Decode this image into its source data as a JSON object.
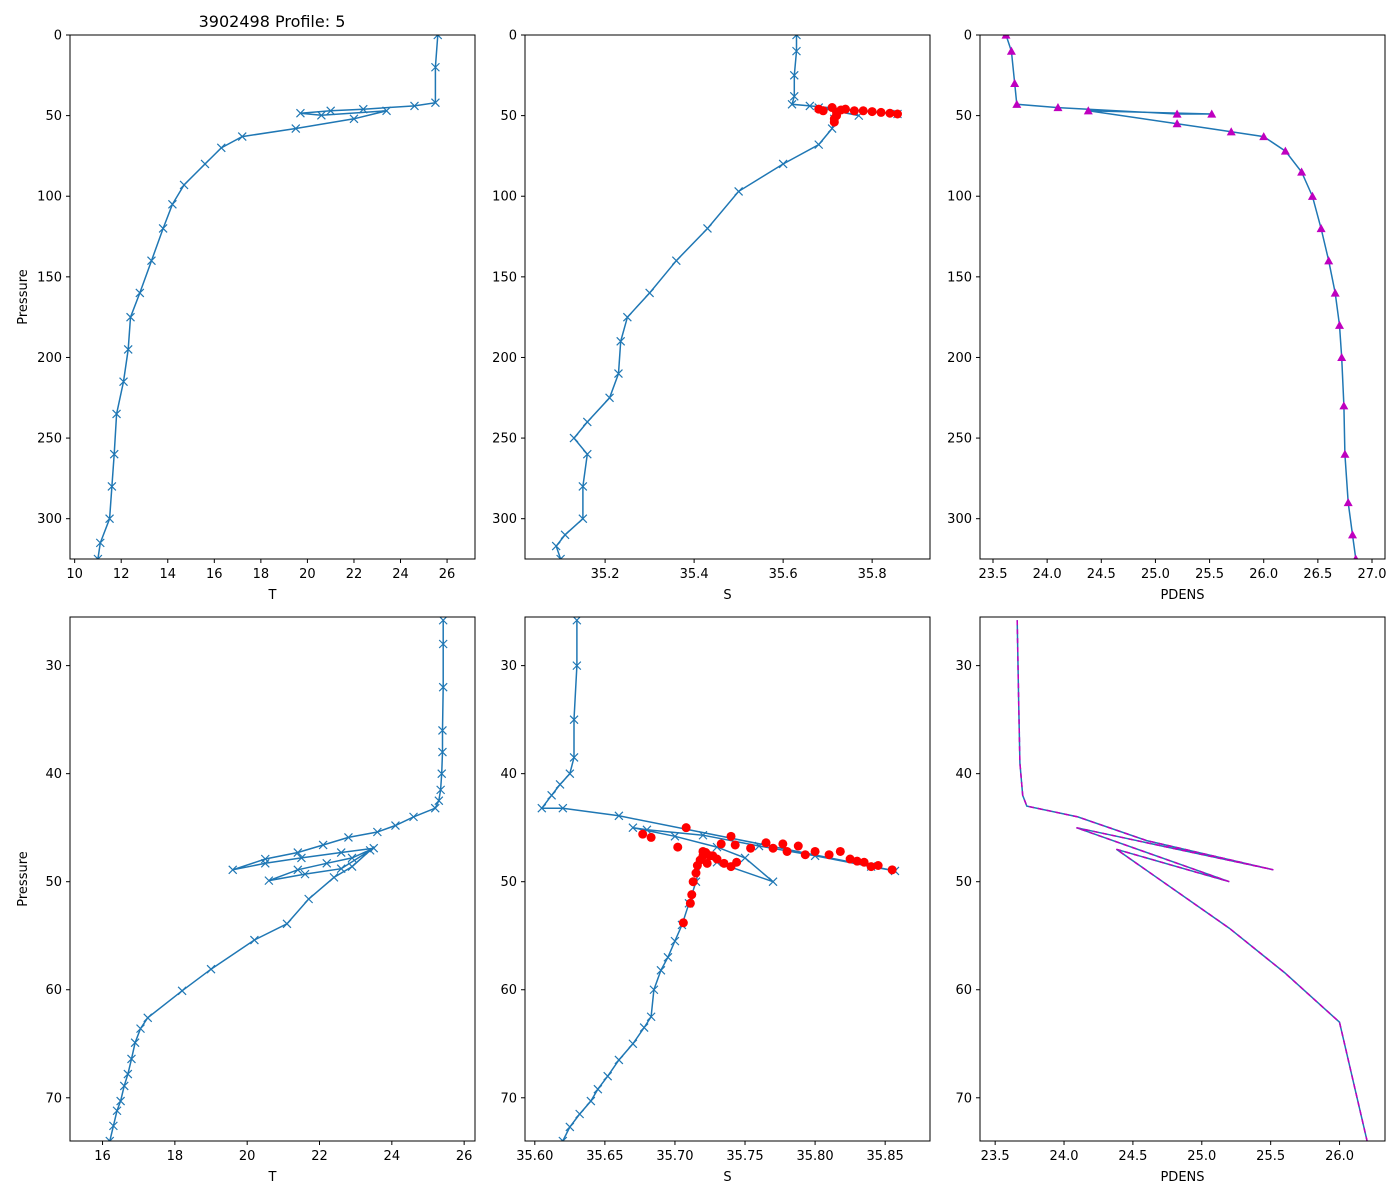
{
  "title": "3902498 Profile: 5",
  "colors": {
    "line": "#1f77b4",
    "flag": "#ff0000",
    "density": "#bf00bf"
  },
  "chart_data": [
    {
      "type": "line",
      "panel": "top-left",
      "xlabel": "T",
      "ylabel": "Pressure",
      "xlim": [
        9.8,
        27.2
      ],
      "ylim": [
        325,
        0
      ],
      "xticks": [
        10,
        12,
        14,
        16,
        18,
        20,
        22,
        24,
        26
      ],
      "yticks": [
        0,
        50,
        100,
        150,
        200,
        250,
        300
      ],
      "marker": "x",
      "series": [
        {
          "name": "T",
          "points": [
            [
              25.6,
              0
            ],
            [
              25.5,
              20
            ],
            [
              25.5,
              42
            ],
            [
              24.6,
              44
            ],
            [
              22.4,
              46
            ],
            [
              21.0,
              47
            ],
            [
              19.7,
              48.5
            ],
            [
              20.6,
              49.8
            ],
            [
              23.4,
              47
            ],
            [
              22.0,
              52
            ],
            [
              19.5,
              58
            ],
            [
              17.2,
              63
            ],
            [
              16.3,
              70
            ],
            [
              15.6,
              80
            ],
            [
              14.7,
              93
            ],
            [
              14.2,
              105
            ],
            [
              13.8,
              120
            ],
            [
              13.3,
              140
            ],
            [
              12.8,
              160
            ],
            [
              12.4,
              175
            ],
            [
              12.3,
              195
            ],
            [
              12.1,
              215
            ],
            [
              11.8,
              235
            ],
            [
              11.7,
              260
            ],
            [
              11.6,
              280
            ],
            [
              11.5,
              300
            ],
            [
              11.1,
              315
            ],
            [
              11.0,
              325
            ]
          ]
        }
      ]
    },
    {
      "type": "line",
      "panel": "top-middle",
      "xlabel": "S",
      "ylabel": "",
      "xlim": [
        35.02,
        35.93
      ],
      "ylim": [
        325,
        0
      ],
      "xticks": [
        35.2,
        35.4,
        35.6,
        35.8
      ],
      "yticks": [
        0,
        50,
        100,
        150,
        200,
        250,
        300
      ],
      "marker": "x",
      "series": [
        {
          "name": "S",
          "points": [
            [
              35.63,
              0
            ],
            [
              35.63,
              10
            ],
            [
              35.625,
              25
            ],
            [
              35.625,
              38
            ],
            [
              35.62,
              43
            ],
            [
              35.66,
              44
            ],
            [
              35.857,
              49
            ],
            [
              35.68,
              45
            ],
            [
              35.77,
              50
            ],
            [
              35.72,
              47
            ],
            [
              35.715,
              52
            ],
            [
              35.71,
              58
            ],
            [
              35.68,
              68
            ],
            [
              35.6,
              80
            ],
            [
              35.5,
              97
            ],
            [
              35.43,
              120
            ],
            [
              35.36,
              140
            ],
            [
              35.3,
              160
            ],
            [
              35.25,
              175
            ],
            [
              35.235,
              190
            ],
            [
              35.23,
              210
            ],
            [
              35.21,
              225
            ],
            [
              35.16,
              240
            ],
            [
              35.13,
              250
            ],
            [
              35.16,
              260
            ],
            [
              35.15,
              280
            ],
            [
              35.15,
              300
            ],
            [
              35.11,
              310
            ],
            [
              35.09,
              317
            ],
            [
              35.1,
              325
            ]
          ]
        },
        {
          "name": "flagged",
          "points": [
            [
              35.68,
              46
            ],
            [
              35.71,
              45
            ],
            [
              35.74,
              46
            ],
            [
              35.76,
              47
            ],
            [
              35.78,
              47
            ],
            [
              35.8,
              47.5
            ],
            [
              35.82,
              48
            ],
            [
              35.84,
              48.5
            ],
            [
              35.857,
              49
            ],
            [
              35.72,
              48
            ],
            [
              35.72,
              50
            ],
            [
              35.715,
              52
            ],
            [
              35.715,
              54
            ],
            [
              35.73,
              46.5
            ],
            [
              35.69,
              47
            ]
          ]
        }
      ]
    },
    {
      "type": "line",
      "panel": "top-right",
      "xlabel": "PDENS",
      "ylabel": "",
      "xlim": [
        23.38,
        27.12
      ],
      "ylim": [
        325,
        0
      ],
      "xticks": [
        23.5,
        24.0,
        24.5,
        25.0,
        25.5,
        26.0,
        26.5,
        27.0
      ],
      "yticks": [
        0,
        50,
        100,
        150,
        200,
        250,
        300
      ],
      "marker": "triangle",
      "series": [
        {
          "name": "PDENS",
          "points": [
            [
              23.62,
              0
            ],
            [
              23.67,
              10
            ],
            [
              23.7,
              30
            ],
            [
              23.72,
              43
            ],
            [
              24.1,
              45
            ],
            [
              25.2,
              49
            ],
            [
              25.52,
              49
            ],
            [
              24.38,
              47
            ],
            [
              25.2,
              55
            ],
            [
              25.7,
              60
            ],
            [
              26.0,
              63
            ],
            [
              26.2,
              72
            ],
            [
              26.35,
              85
            ],
            [
              26.45,
              100
            ],
            [
              26.53,
              120
            ],
            [
              26.6,
              140
            ],
            [
              26.66,
              160
            ],
            [
              26.7,
              180
            ],
            [
              26.72,
              200
            ],
            [
              26.74,
              230
            ],
            [
              26.75,
              260
            ],
            [
              26.78,
              290
            ],
            [
              26.82,
              310
            ],
            [
              26.85,
              325
            ]
          ]
        }
      ]
    },
    {
      "type": "line",
      "panel": "bottom-left",
      "xlabel": "T",
      "ylabel": "Pressure",
      "xlim": [
        15.1,
        26.3
      ],
      "ylim": [
        74,
        25.5
      ],
      "xticks": [
        16,
        18,
        20,
        22,
        24,
        26
      ],
      "yticks": [
        30,
        40,
        50,
        60,
        70
      ],
      "marker": "x",
      "series": [
        {
          "name": "T",
          "points": [
            [
              25.42,
              25.8
            ],
            [
              25.42,
              28
            ],
            [
              25.42,
              32
            ],
            [
              25.4,
              36
            ],
            [
              25.4,
              38
            ],
            [
              25.38,
              40
            ],
            [
              25.35,
              41.5
            ],
            [
              25.3,
              42.5
            ],
            [
              25.2,
              43.2
            ],
            [
              24.6,
              44
            ],
            [
              24.1,
              44.8
            ],
            [
              23.6,
              45.4
            ],
            [
              22.8,
              45.9
            ],
            [
              22.1,
              46.6
            ],
            [
              21.4,
              47.3
            ],
            [
              20.5,
              47.9
            ],
            [
              19.6,
              48.9
            ],
            [
              20.5,
              48.3
            ],
            [
              21.5,
              47.8
            ],
            [
              22.6,
              47.3
            ],
            [
              23.5,
              46.9
            ],
            [
              22.9,
              47.8
            ],
            [
              22.2,
              48.3
            ],
            [
              21.4,
              48.9
            ],
            [
              20.6,
              49.9
            ],
            [
              21.6,
              49.3
            ],
            [
              22.6,
              48.8
            ],
            [
              23.4,
              47.1
            ],
            [
              22.9,
              48.6
            ],
            [
              22.4,
              49.6
            ],
            [
              21.7,
              51.6
            ],
            [
              21.1,
              53.9
            ],
            [
              20.2,
              55.4
            ],
            [
              19.0,
              58.1
            ],
            [
              18.2,
              60.1
            ],
            [
              17.25,
              62.6
            ],
            [
              17.05,
              63.6
            ],
            [
              16.9,
              64.9
            ],
            [
              16.8,
              66.4
            ],
            [
              16.7,
              67.8
            ],
            [
              16.6,
              68.9
            ],
            [
              16.5,
              70.3
            ],
            [
              16.4,
              71.2
            ],
            [
              16.3,
              72.6
            ],
            [
              16.2,
              74
            ]
          ]
        }
      ]
    },
    {
      "type": "line",
      "panel": "bottom-middle",
      "xlabel": "S",
      "ylabel": "",
      "xlim": [
        35.593,
        35.882
      ],
      "ylim": [
        74,
        25.5
      ],
      "xticks": [
        35.6,
        35.65,
        35.7,
        35.75,
        35.8,
        35.85
      ],
      "yticks": [
        30,
        40,
        50,
        60,
        70
      ],
      "marker": "x",
      "series": [
        {
          "name": "S",
          "points": [
            [
              35.63,
              25.8
            ],
            [
              35.63,
              30
            ],
            [
              35.628,
              35
            ],
            [
              35.628,
              38.5
            ],
            [
              35.625,
              40
            ],
            [
              35.618,
              41
            ],
            [
              35.612,
              42
            ],
            [
              35.605,
              43.2
            ],
            [
              35.62,
              43.2
            ],
            [
              35.66,
              43.9
            ],
            [
              35.857,
              49.0
            ],
            [
              35.84,
              48.6
            ],
            [
              35.8,
              47.6
            ],
            [
              35.76,
              46.7
            ],
            [
              35.72,
              45.7
            ],
            [
              35.68,
              45.2
            ],
            [
              35.67,
              45.0
            ],
            [
              35.7,
              45.8
            ],
            [
              35.73,
              46.8
            ],
            [
              35.75,
              47.8
            ],
            [
              35.77,
              50.0
            ],
            [
              35.73,
              48.2
            ],
            [
              35.72,
              47.4
            ],
            [
              35.715,
              50
            ],
            [
              35.71,
              52
            ],
            [
              35.705,
              54
            ],
            [
              35.7,
              55.5
            ],
            [
              35.695,
              57
            ],
            [
              35.69,
              58.2
            ],
            [
              35.685,
              60
            ],
            [
              35.683,
              62.5
            ],
            [
              35.678,
              63.5
            ],
            [
              35.67,
              65
            ],
            [
              35.66,
              66.5
            ],
            [
              35.652,
              68
            ],
            [
              35.645,
              69.2
            ],
            [
              35.64,
              70.3
            ],
            [
              35.632,
              71.5
            ],
            [
              35.625,
              72.7
            ],
            [
              35.62,
              74
            ]
          ]
        },
        {
          "name": "flagged",
          "points": [
            [
              35.708,
              45.0
            ],
            [
              35.677,
              45.6
            ],
            [
              35.683,
              45.9
            ],
            [
              35.702,
              46.8
            ],
            [
              35.74,
              45.8
            ],
            [
              35.733,
              46.5
            ],
            [
              35.743,
              46.6
            ],
            [
              35.754,
              46.9
            ],
            [
              35.765,
              46.4
            ],
            [
              35.77,
              46.9
            ],
            [
              35.777,
              46.5
            ],
            [
              35.78,
              47.2
            ],
            [
              35.788,
              46.7
            ],
            [
              35.793,
              47.5
            ],
            [
              35.8,
              47.2
            ],
            [
              35.81,
              47.5
            ],
            [
              35.818,
              47.2
            ],
            [
              35.825,
              47.9
            ],
            [
              35.83,
              48.1
            ],
            [
              35.835,
              48.2
            ],
            [
              35.84,
              48.6
            ],
            [
              35.845,
              48.5
            ],
            [
              35.855,
              48.9
            ],
            [
              35.722,
              47.3
            ],
            [
              35.725,
              47.6
            ],
            [
              35.73,
              47.9
            ],
            [
              35.735,
              48.3
            ],
            [
              35.74,
              48.6
            ],
            [
              35.744,
              48.2
            ],
            [
              35.72,
              47.6
            ],
            [
              35.718,
              48.0
            ],
            [
              35.716,
              48.5
            ],
            [
              35.715,
              49.2
            ],
            [
              35.713,
              50.0
            ],
            [
              35.712,
              51.2
            ],
            [
              35.711,
              52.0
            ],
            [
              35.706,
              53.8
            ],
            [
              35.72,
              47.2
            ],
            [
              35.727,
              47.6
            ],
            [
              35.723,
              48.3
            ]
          ]
        }
      ]
    },
    {
      "type": "line",
      "panel": "bottom-right",
      "xlabel": "PDENS",
      "ylabel": "",
      "xlim": [
        23.39,
        26.33
      ],
      "ylim": [
        74,
        25.5
      ],
      "xticks": [
        23.5,
        24.0,
        24.5,
        25.0,
        25.5,
        26.0
      ],
      "yticks": [
        30,
        40,
        50,
        60,
        70
      ],
      "marker": "none",
      "series": [
        {
          "name": "PDENS",
          "points": [
            [
              23.66,
              25.8
            ],
            [
              23.67,
              33
            ],
            [
              23.68,
              39
            ],
            [
              23.7,
              42
            ],
            [
              23.73,
              43.0
            ],
            [
              24.1,
              44.0
            ],
            [
              24.6,
              46.2
            ],
            [
              25.52,
              48.9
            ],
            [
              24.09,
              45.0
            ],
            [
              25.2,
              50.0
            ],
            [
              24.38,
              47.0
            ],
            [
              25.2,
              54.3
            ],
            [
              25.6,
              58.4
            ],
            [
              26.0,
              63.0
            ],
            [
              26.2,
              74
            ]
          ]
        }
      ]
    }
  ]
}
